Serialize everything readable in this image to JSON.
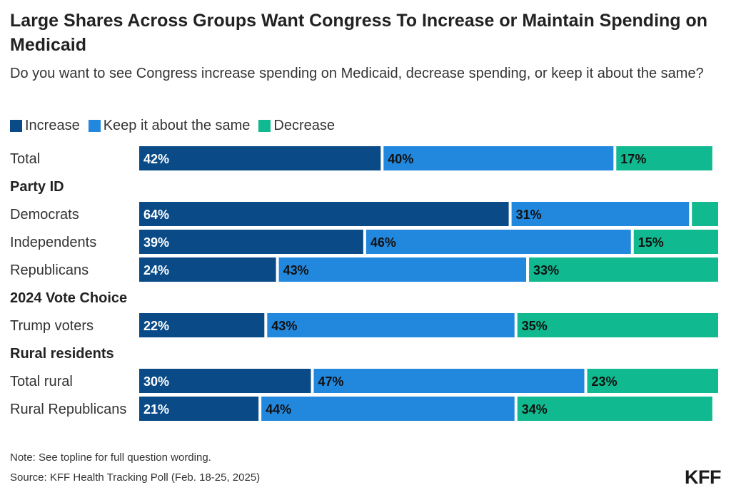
{
  "header": {
    "title": "Large Shares Across Groups Want Congress To Increase or Maintain Spending on Medicaid",
    "subtitle": "Do you want to see Congress increase spending on Medicaid, decrease spending, or keep it about the same?"
  },
  "legend": [
    {
      "label": "Increase",
      "color": "#0a4b87"
    },
    {
      "label": "Keep it about the same",
      "color": "#2288dd"
    },
    {
      "label": "Decrease",
      "color": "#10b98f"
    }
  ],
  "chart_data": {
    "type": "bar",
    "orientation": "horizontal",
    "stacked": true,
    "title": "Large Shares Across Groups Want Congress To Increase or Maintain Spending on Medicaid",
    "xlim": [
      0,
      100
    ],
    "grid": false,
    "legend_position": "top-left",
    "rows": [
      {
        "kind": "bar",
        "label": "Total",
        "values": [
          42,
          40,
          17
        ]
      },
      {
        "kind": "group",
        "label": "Party ID"
      },
      {
        "kind": "bar",
        "label": "Democrats",
        "values": [
          64,
          31,
          5
        ]
      },
      {
        "kind": "bar",
        "label": "Independents",
        "values": [
          39,
          46,
          15
        ]
      },
      {
        "kind": "bar",
        "label": "Republicans",
        "values": [
          24,
          43,
          33
        ]
      },
      {
        "kind": "group",
        "label": "2024 Vote Choice"
      },
      {
        "kind": "bar",
        "label": "Trump voters",
        "values": [
          22,
          43,
          35
        ]
      },
      {
        "kind": "group",
        "label": "Rural residents"
      },
      {
        "kind": "bar",
        "label": "Total rural",
        "values": [
          30,
          47,
          23
        ]
      },
      {
        "kind": "bar",
        "label": "Rural Republicans",
        "values": [
          21,
          44,
          34
        ]
      }
    ],
    "series": [
      {
        "name": "Increase",
        "color": "#0a4b87",
        "label_color": "#ffffff"
      },
      {
        "name": "Keep it about the same",
        "color": "#2288dd",
        "label_color": "#111111"
      },
      {
        "name": "Decrease",
        "color": "#10b98f",
        "label_color": "#111111"
      }
    ],
    "value_suffix": "%",
    "min_labeled_value": 8
  },
  "footer": {
    "note": "Note: See topline for full question wording.",
    "source": "Source: KFF Health Tracking Poll (Feb. 18-25, 2025)",
    "logo": "KFF"
  }
}
